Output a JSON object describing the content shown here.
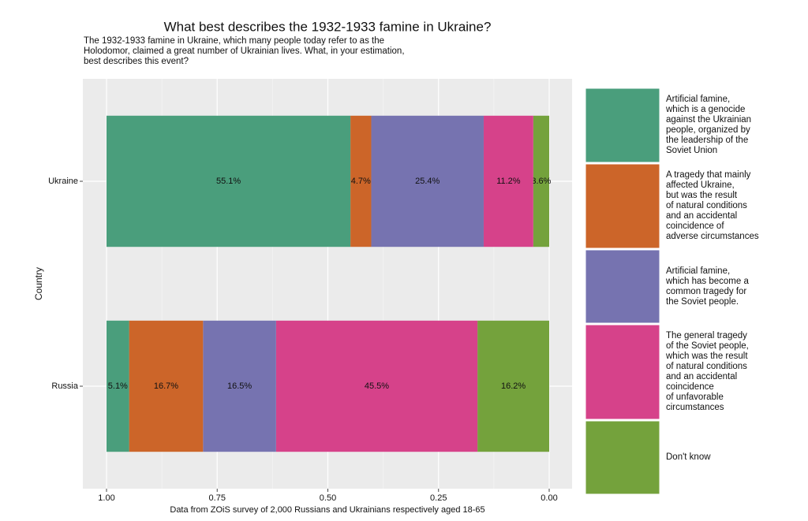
{
  "chart_data": {
    "type": "stacked_barh",
    "title": "What best describes the 1932-1933 famine in Ukraine?",
    "subtitle": "The 1932-1933 famine in Ukraine, which many people today refer to as the\nHolodomor, claimed a great number of Ukrainian lives. What, in your estimation,\nbest describes this event?",
    "x_label": "Data from ZOiS survey of 2,000 Russians and Ukrainians respectively aged 18-65",
    "y_label": "Country",
    "categories": [
      "Ukraine",
      "Russia"
    ],
    "series": [
      {
        "name": "Artificial famine,\nwhich is a genocide\nagainst the Ukrainian\npeople, organized by\nthe leadership of the\nSoviet Union",
        "color": "#4a9e7c",
        "values": [
          0.551,
          0.051
        ],
        "value_labels": [
          "55.1%",
          "5.1%"
        ]
      },
      {
        "name": "A tragedy that mainly\naffected Ukraine,\nbut was the result\nof natural conditions\nand an accidental\ncoincidence of\nadverse circumstances",
        "color": "#cc6529",
        "values": [
          0.047,
          0.167
        ],
        "value_labels": [
          "4.7%",
          "16.7%"
        ]
      },
      {
        "name": "Artificial famine,\nwhich has become a\ncommon tragedy for\nthe Soviet people.",
        "color": "#7673b0",
        "values": [
          0.254,
          0.165
        ],
        "value_labels": [
          "25.4%",
          "16.5%"
        ]
      },
      {
        "name": "The general tragedy\nof the Soviet people,\nwhich was the result\nof natural conditions\nand an accidental\ncoincidence\nof unfavorable\ncircumstances",
        "color": "#d6428a",
        "values": [
          0.112,
          0.455
        ],
        "value_labels": [
          "11.2%",
          "45.5%"
        ]
      },
      {
        "name": "Don't know",
        "color": "#74a23c",
        "values": [
          0.036,
          0.162
        ],
        "value_labels": [
          "3.6%",
          "16.2%"
        ]
      }
    ],
    "xlim": [
      1,
      0
    ],
    "xticks": [
      {
        "value": 1,
        "label": "1.00"
      },
      {
        "value": 0.75,
        "label": "0.75"
      },
      {
        "value": 0.5,
        "label": "0.50"
      },
      {
        "value": 0.25,
        "label": "0.25"
      },
      {
        "value": 0,
        "label": "0.00"
      }
    ],
    "grid": true,
    "legend": "right"
  }
}
